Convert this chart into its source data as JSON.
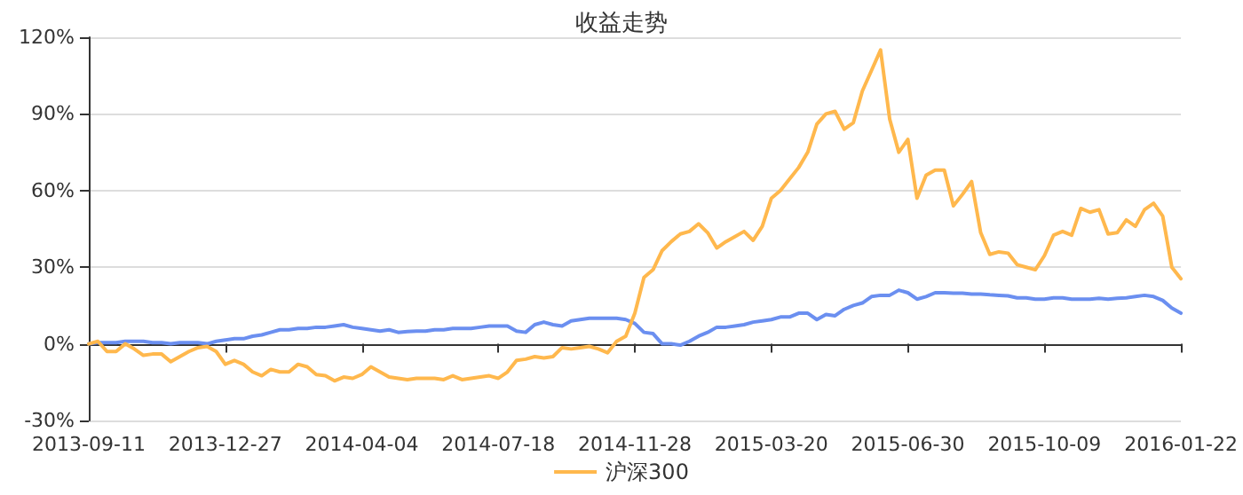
{
  "chart_data": {
    "type": "line",
    "title": "收益走势",
    "categories": [
      "2013-09-11",
      null,
      null,
      null,
      null,
      null,
      null,
      null,
      null,
      null,
      null,
      null,
      null,
      null,
      null,
      "2013-12-27",
      null,
      null,
      null,
      null,
      null,
      null,
      null,
      null,
      null,
      null,
      null,
      null,
      null,
      null,
      "2014-04-04",
      null,
      null,
      null,
      null,
      null,
      null,
      null,
      null,
      null,
      null,
      null,
      null,
      null,
      null,
      "2014-07-18",
      null,
      null,
      null,
      null,
      null,
      null,
      null,
      null,
      null,
      null,
      null,
      null,
      null,
      null,
      "2014-11-28",
      null,
      null,
      null,
      null,
      null,
      null,
      null,
      null,
      null,
      null,
      null,
      null,
      null,
      null,
      "2015-03-20",
      null,
      null,
      null,
      null,
      null,
      null,
      null,
      null,
      null,
      null,
      null,
      null,
      null,
      null,
      "2015-06-30",
      null,
      null,
      null,
      null,
      null,
      null,
      null,
      null,
      null,
      null,
      null,
      null,
      null,
      null,
      "2015-10-09",
      null,
      null,
      null,
      null,
      null,
      null,
      null,
      null,
      null,
      null,
      null,
      null,
      null,
      null,
      "2016-01-22"
    ],
    "series": [
      {
        "color": "#6b8ff0",
        "values": [
          0,
          0.5,
          0.5,
          0.5,
          1,
          1,
          1,
          0.5,
          0.5,
          0,
          0.5,
          0.5,
          0.5,
          0,
          1,
          1.5,
          2,
          2,
          3,
          3.5,
          4.5,
          5.5,
          5.5,
          6,
          6,
          6.5,
          6.5,
          7,
          7.5,
          6.5,
          6,
          5.5,
          5,
          5.5,
          4.5,
          4.8,
          5,
          5,
          5.5,
          5.5,
          6,
          6,
          6,
          6.5,
          7,
          7,
          7,
          5,
          4.5,
          7.5,
          8.5,
          7.5,
          7,
          9,
          9.5,
          10,
          10,
          10,
          10,
          9.5,
          8,
          4.5,
          4,
          0,
          0,
          -0.5,
          1,
          3,
          4.5,
          6.5,
          6.5,
          7,
          7.5,
          8.5,
          9,
          9.5,
          10.5,
          10.5,
          12,
          12,
          9.5,
          11.5,
          11,
          13.5,
          15,
          16,
          18.5,
          19,
          19,
          21,
          20,
          17.5,
          18.5,
          20,
          20,
          19.8,
          19.8,
          19.5,
          19.5,
          19.2,
          19,
          18.8,
          18,
          18,
          17.5,
          17.5,
          18,
          18,
          17.5,
          17.5,
          17.5,
          17.8,
          17.5,
          17.8,
          18,
          18.5,
          19,
          18.5,
          17,
          14,
          12
        ]
      },
      {
        "name": "沪深300",
        "color": "#ffb84d",
        "values": [
          0,
          1,
          -3,
          -3,
          0,
          -2,
          -4.5,
          -4,
          -4,
          -7,
          -5,
          -3,
          -1.5,
          -1,
          -3,
          -8,
          -6.5,
          -8,
          -11,
          -12.5,
          -10,
          -11,
          -11,
          -8,
          -9,
          -12,
          -12.5,
          -14.5,
          -13,
          -13.5,
          -12,
          -9,
          -11,
          -13,
          -13.5,
          -14,
          -13.5,
          -13.5,
          -13.5,
          -14,
          -12.5,
          -14,
          -13.5,
          -13,
          -12.5,
          -13.5,
          -11,
          -6.5,
          -6,
          -5,
          -5.5,
          -5,
          -1.5,
          -2,
          -1.5,
          -1,
          -2,
          -3.5,
          1,
          3,
          12,
          26,
          29,
          36.5,
          40,
          43,
          44,
          47,
          43.5,
          37.5,
          40,
          42,
          44,
          40.5,
          46,
          57,
          60,
          64.5,
          69,
          75,
          86,
          90,
          91,
          84,
          86.5,
          99,
          107,
          115,
          88,
          75,
          80,
          57,
          66,
          68,
          68,
          54,
          58.5,
          63.5,
          43.5,
          35,
          36,
          35.5,
          31,
          30,
          29,
          34.5,
          42.5,
          44,
          42.5,
          53,
          51.5,
          52.5,
          43,
          43.5,
          48.5,
          46,
          52.5,
          55,
          50,
          30,
          25.5
        ]
      }
    ],
    "ylim": [
      -30,
      120
    ],
    "yticks": [
      {
        "value": -30,
        "label": "-30%"
      },
      {
        "value": 0,
        "label": "0%"
      },
      {
        "value": 30,
        "label": "30%"
      },
      {
        "value": 60,
        "label": "60%"
      },
      {
        "value": 90,
        "label": "90%"
      },
      {
        "value": 120,
        "label": "120%"
      }
    ],
    "grid": "y",
    "legend": "bottom",
    "marker": "none",
    "line_style": "solid"
  }
}
